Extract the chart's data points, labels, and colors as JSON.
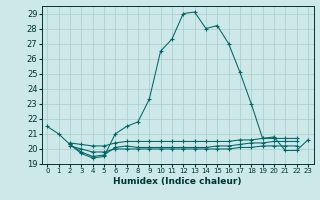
{
  "xlabel": "Humidex (Indice chaleur)",
  "bg_color": "#cce8e8",
  "grid_color": "#aacccc",
  "line_color": "#006666",
  "xlim": [
    -0.5,
    23.5
  ],
  "ylim": [
    19.0,
    29.5
  ],
  "yticks": [
    19,
    20,
    21,
    22,
    23,
    24,
    25,
    26,
    27,
    28,
    29
  ],
  "xticks": [
    0,
    1,
    2,
    3,
    4,
    5,
    6,
    7,
    8,
    9,
    10,
    11,
    12,
    13,
    14,
    15,
    16,
    17,
    18,
    19,
    20,
    21,
    22,
    23
  ],
  "series": [
    [
      21.5,
      21.0,
      20.3,
      19.7,
      19.4,
      19.5,
      21.0,
      21.5,
      21.8,
      23.3,
      26.5,
      27.3,
      29.0,
      29.1,
      28.0,
      28.2,
      27.0,
      25.1,
      23.0,
      20.7,
      20.8,
      19.9,
      19.9,
      20.6
    ],
    [
      null,
      null,
      20.3,
      19.8,
      19.5,
      19.6,
      20.1,
      20.2,
      20.1,
      20.1,
      20.1,
      20.1,
      20.1,
      20.1,
      20.1,
      20.2,
      20.2,
      20.3,
      20.4,
      20.4,
      20.5,
      20.5,
      20.5,
      null
    ],
    [
      null,
      null,
      20.2,
      20.0,
      19.8,
      19.8,
      20.0,
      20.0,
      20.0,
      20.0,
      20.0,
      20.0,
      20.0,
      20.0,
      20.0,
      20.0,
      20.0,
      20.1,
      20.1,
      20.2,
      20.2,
      20.2,
      20.2,
      null
    ],
    [
      null,
      null,
      20.4,
      20.3,
      20.2,
      20.2,
      20.4,
      20.5,
      20.5,
      20.5,
      20.5,
      20.5,
      20.5,
      20.5,
      20.5,
      20.5,
      20.5,
      20.6,
      20.6,
      20.7,
      20.7,
      20.7,
      20.7,
      null
    ]
  ]
}
